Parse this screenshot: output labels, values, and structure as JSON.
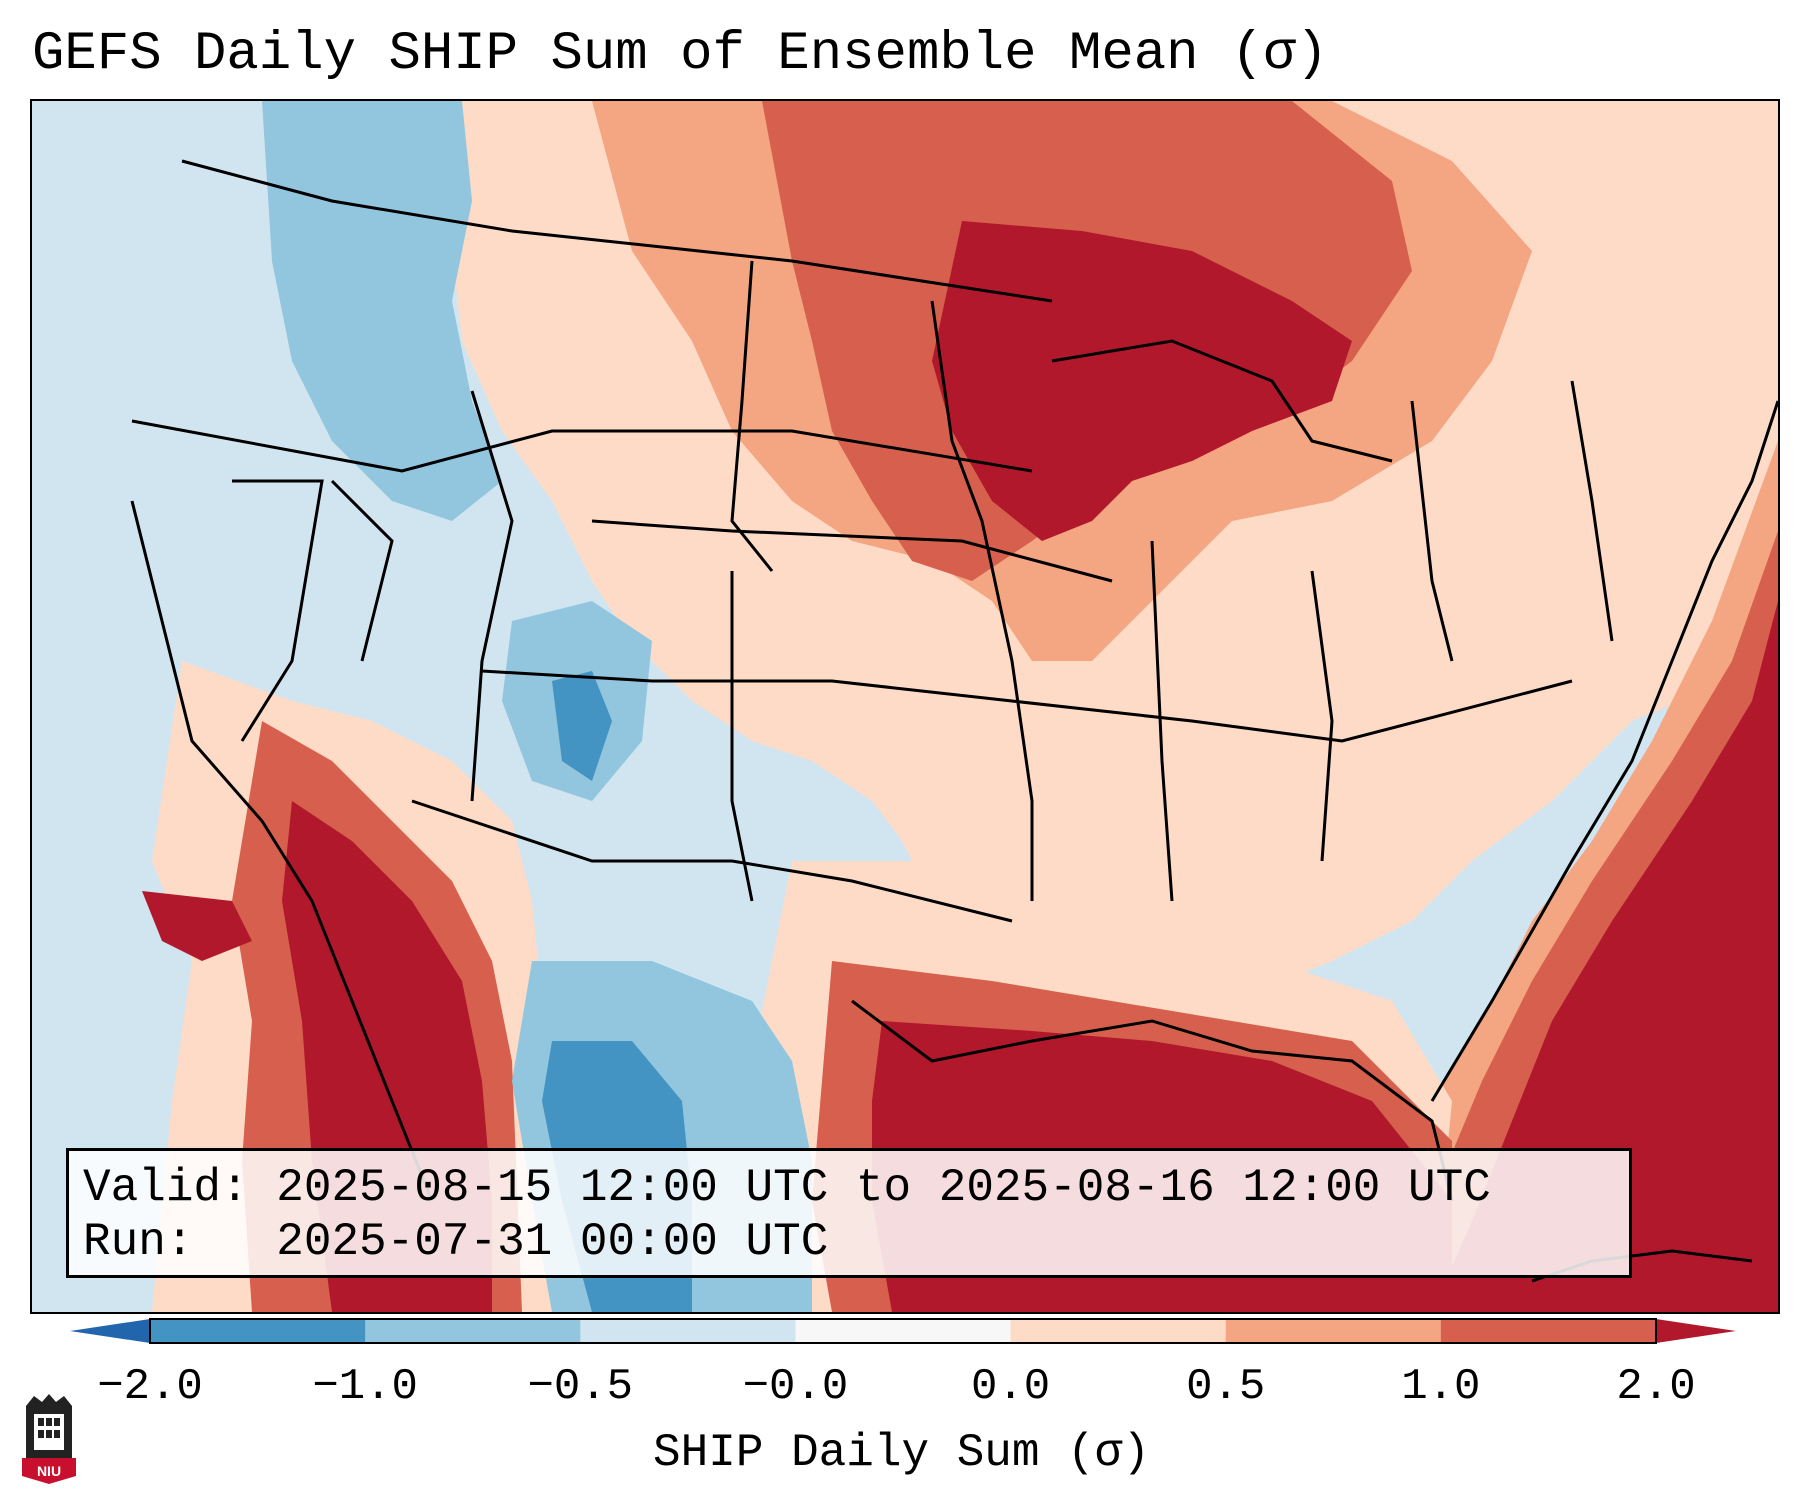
{
  "title": "GEFS Daily SHIP Sum of Ensemble Mean (σ)",
  "info": {
    "valid_line": "Valid: 2025-08-15 12:00 UTC to 2025-08-16 12:00 UTC",
    "run_line": "Run:   2025-07-31 00:00 UTC"
  },
  "colorbar": {
    "label": "SHIP Daily Sum (σ)",
    "tick_labels": [
      "−2.0",
      "−1.0",
      "−0.5",
      "−0.0",
      "0.0",
      "0.5",
      "1.0",
      "2.0"
    ],
    "colors": {
      "under": "#2166ac",
      "bins": [
        "#4393c3",
        "#92c5de",
        "#d1e5f0",
        "#f7f7f7",
        "#fddbc7",
        "#f4a582",
        "#d6604d"
      ],
      "over": "#b2182b"
    }
  },
  "logo": {
    "text": "NIU",
    "color": "#c8102e"
  }
}
